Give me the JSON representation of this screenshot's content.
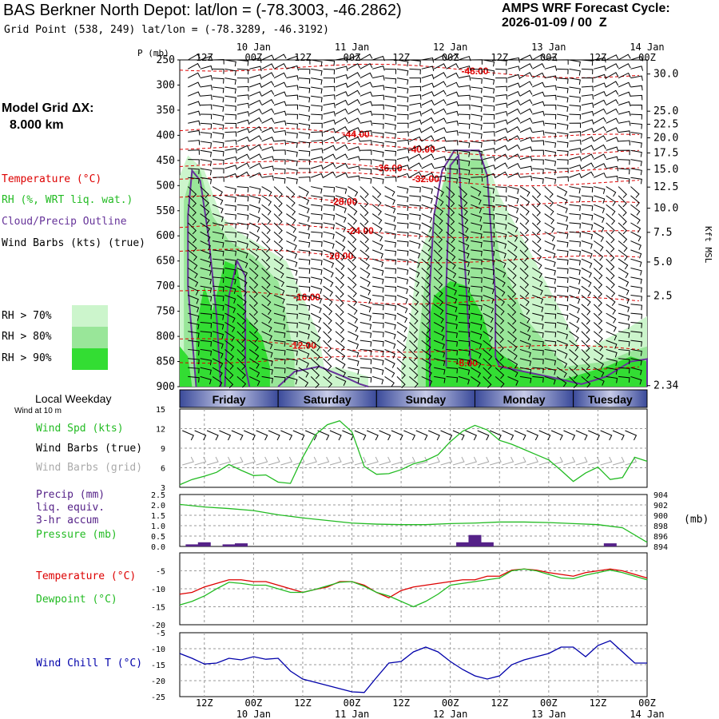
{
  "header": {
    "title": "BAS Berkner North Depot:  lat/lon = (-78.3003, -46.2862)",
    "subtitle": "Grid Point (538, 249) lat/lon = (-78.3289, -46.3192)",
    "cycle_label": "AMPS WRF Forecast Cycle:",
    "cycle_value": "2026-01-09 / 00  Z"
  },
  "model_grid": {
    "label": "Model Grid ΔX:",
    "value": "8.000 km"
  },
  "legend": {
    "temperature": "Temperature (°C)",
    "rh": "RH (%, WRT liq. wat.)",
    "cloud": "Cloud/Precip Outline",
    "wind": "Wind Barbs (kts) (true)",
    "rh70": "RH > 70%",
    "rh80": "RH > 80%",
    "rh90": "RH > 90%"
  },
  "colors": {
    "temperature": "#dd0000",
    "rh": "#22bb22",
    "cloud": "#663399",
    "rh70": "#ccf5cc",
    "rh80": "#99e699",
    "rh90": "#33dd33",
    "dewpoint": "#22bb22",
    "windchill": "#0000aa",
    "wind_grid": "#aaaaaa",
    "precip": "#552288"
  },
  "time_axis": {
    "top_hours": [
      "12Z",
      "00Z",
      "12Z",
      "00Z",
      "12Z",
      "00Z",
      "12Z",
      "00Z",
      "12Z",
      "00Z"
    ],
    "top_dates": [
      "10 Jan",
      "11 Jan",
      "12 Jan",
      "13 Jan",
      "14 Jan"
    ],
    "bottom_hours": [
      "12Z",
      "00Z",
      "12Z",
      "00Z",
      "12Z",
      "00Z",
      "12Z",
      "00Z",
      "12Z",
      "00Z"
    ],
    "bottom_dates": [
      "10 Jan",
      "11 Jan",
      "12 Jan",
      "13 Jan",
      "14 Jan"
    ]
  },
  "weekday": {
    "label": "Local Weekday",
    "sublabel": "Wind at 10 m",
    "days": [
      "Friday",
      "Saturday",
      "Sunday",
      "Monday",
      "Tuesday"
    ]
  },
  "panel_labels": {
    "p_unit": "P (mb)",
    "kft": "Kft MSL",
    "wind_spd": "Wind Spd (kts)",
    "wind_barbs_true": "Wind Barbs (true)",
    "wind_barbs_grid": "Wind Barbs (grid)",
    "precip_1": "Precip (mm)",
    "precip_2": "liq. equiv.",
    "precip_3": "3-hr accum",
    "pressure": "Pressure (mb)",
    "mb": "(mb)",
    "temperature": "Temperature (°C)",
    "dewpoint": "Dewpoint (°C)",
    "windchill": "Wind Chill T (°C)"
  },
  "chart_data": [
    {
      "type": "heatmap",
      "name": "time-height cross section",
      "x_unit": "hours from 2026-01-09 00Z",
      "xlim": [
        6,
        120
      ],
      "pressure_ticks": [
        250,
        300,
        350,
        400,
        450,
        500,
        550,
        600,
        650,
        700,
        750,
        800,
        850,
        900
      ],
      "ylim": [
        250,
        900
      ],
      "height_ticks": [
        "30.0",
        "25.0",
        "22.5",
        "20.0",
        "17.5",
        "15.0",
        "12.5",
        "10.0",
        "7.5",
        "5.0",
        "2.5",
        "2.34"
      ],
      "height_tick_pressures": [
        278,
        352,
        378,
        405,
        435,
        468,
        503,
        545,
        593,
        652,
        720,
        898
      ],
      "temperature_contours": [
        {
          "label": "-48.00",
          "x": 78,
          "p": 272
        },
        {
          "label": "-44.00",
          "x": 49,
          "p": 398
        },
        {
          "label": "-40.00",
          "x": 65,
          "p": 428
        },
        {
          "label": "-36.00",
          "x": 57,
          "p": 465
        },
        {
          "label": "-32.00",
          "x": 66,
          "p": 487
        },
        {
          "label": "-28.00",
          "x": 46,
          "p": 532
        },
        {
          "label": "-24.00",
          "x": 50,
          "p": 590
        },
        {
          "label": "-20.00",
          "x": 45,
          "p": 640
        },
        {
          "label": "-16.00",
          "x": 37,
          "p": 722
        },
        {
          "label": "-12.00",
          "x": 36,
          "p": 818
        },
        {
          "label": "-8.00",
          "x": 76,
          "p": 853
        }
      ]
    },
    {
      "type": "line",
      "name": "wind speed",
      "ylim": [
        3,
        15
      ],
      "yticks": [
        3,
        6,
        9,
        12,
        15
      ],
      "x": [
        6,
        9,
        12,
        15,
        18,
        21,
        24,
        27,
        30,
        33,
        36,
        39,
        42,
        45,
        48,
        51,
        54,
        57,
        60,
        63,
        66,
        69,
        72,
        75,
        78,
        81,
        84,
        87,
        90,
        93,
        96,
        99,
        102,
        105,
        108,
        111,
        114,
        117,
        120
      ],
      "series": [
        {
          "values": [
            3.4,
            4.2,
            4.7,
            5.3,
            6.5,
            5.6,
            4.8,
            4.9,
            3.8,
            3.6,
            7.6,
            11.0,
            12.6,
            13.2,
            11.5,
            6.2,
            5.0,
            5.1,
            5.7,
            6.6,
            7.1,
            8.0,
            10.0,
            11.6,
            12.5,
            11.8,
            10.2,
            9.6,
            8.8,
            8.0,
            7.2,
            5.6,
            3.9,
            5.2,
            6.1,
            4.2,
            4.5,
            7.6,
            7.0
          ]
        }
      ]
    },
    {
      "type": "bar",
      "name": "precipitation and pressure",
      "left_ylim": [
        0,
        2.5
      ],
      "left_yticks": [
        "0.0",
        "0.5",
        "1.0",
        "1.5",
        "2.0",
        "2.5"
      ],
      "right_ylim": [
        894,
        904
      ],
      "right_yticks": [
        "894",
        "896",
        "898",
        "900",
        "902",
        "904"
      ],
      "precip_bars": [
        {
          "x": 9,
          "value": 0.1
        },
        {
          "x": 12,
          "value": 0.2
        },
        {
          "x": 18,
          "value": 0.1
        },
        {
          "x": 21,
          "value": 0.15
        },
        {
          "x": 75,
          "value": 0.2
        },
        {
          "x": 78,
          "value": 0.55
        },
        {
          "x": 81,
          "value": 0.2
        },
        {
          "x": 111,
          "value": 0.15
        }
      ],
      "pressure_x": [
        6,
        12,
        18,
        24,
        30,
        36,
        42,
        48,
        54,
        60,
        66,
        72,
        78,
        84,
        90,
        96,
        102,
        108,
        114,
        120
      ],
      "pressure_values": [
        902.1,
        901.6,
        901.3,
        900.9,
        900.1,
        899.5,
        899.0,
        898.5,
        898.3,
        898.2,
        898.2,
        898.4,
        898.5,
        898.7,
        898.7,
        898.6,
        898.4,
        898.2,
        897.6,
        894.8
      ]
    },
    {
      "type": "line",
      "name": "temperature and dewpoint",
      "ylim": [
        -20,
        0
      ],
      "yticks": [
        -20,
        -15,
        -10,
        -5
      ],
      "x": [
        6,
        9,
        12,
        15,
        18,
        21,
        24,
        27,
        30,
        33,
        36,
        39,
        42,
        45,
        48,
        51,
        54,
        57,
        60,
        63,
        66,
        69,
        72,
        75,
        78,
        81,
        84,
        87,
        90,
        93,
        96,
        99,
        102,
        105,
        108,
        111,
        114,
        117,
        120
      ],
      "series": [
        {
          "values": [
            -11.5,
            -11.0,
            -9.5,
            -8.5,
            -7.5,
            -7.5,
            -8.0,
            -8.0,
            -9.0,
            -10.0,
            -11.0,
            -10.2,
            -9.5,
            -8.0,
            -8.0,
            -9.0,
            -11.0,
            -12.5,
            -10.5,
            -9.5,
            -9.0,
            -8.5,
            -8.0,
            -7.5,
            -7.5,
            -6.5,
            -6.5,
            -4.8,
            -4.5,
            -4.8,
            -5.5,
            -6.0,
            -6.5,
            -5.5,
            -5.0,
            -4.5,
            -5.0,
            -6.0,
            -7.0
          ]
        },
        {
          "values": [
            -14.5,
            -13.5,
            -12.0,
            -10.0,
            -8.2,
            -8.5,
            -9.0,
            -9.0,
            -10.0,
            -11.0,
            -11.0,
            -10.2,
            -9.2,
            -8.2,
            -8.0,
            -9.3,
            -11.0,
            -12.0,
            -13.5,
            -15.0,
            -13.5,
            -11.5,
            -9.0,
            -8.5,
            -8.0,
            -7.5,
            -7.0,
            -5.0,
            -4.5,
            -5.0,
            -6.0,
            -7.0,
            -7.2,
            -6.2,
            -5.5,
            -4.8,
            -5.5,
            -6.5,
            -7.5
          ]
        }
      ]
    },
    {
      "type": "line",
      "name": "wind chill",
      "ylim": [
        -25,
        -5
      ],
      "yticks": [
        -25,
        -20,
        -15,
        -10,
        -5
      ],
      "x": [
        6,
        9,
        12,
        15,
        18,
        21,
        24,
        27,
        30,
        33,
        36,
        39,
        42,
        45,
        48,
        51,
        54,
        57,
        60,
        63,
        66,
        69,
        72,
        75,
        78,
        81,
        84,
        87,
        90,
        93,
        96,
        99,
        102,
        105,
        108,
        111,
        114,
        117,
        120
      ],
      "series": [
        {
          "values": [
            -11.5,
            -13.0,
            -14.8,
            -14.5,
            -13.0,
            -13.5,
            -12.5,
            -13.3,
            -13.0,
            -17.0,
            -19.5,
            -20.5,
            -21.5,
            -22.5,
            -23.5,
            -23.7,
            -19.0,
            -14.5,
            -14.0,
            -11.0,
            -9.5,
            -11.0,
            -14.0,
            -16.5,
            -18.5,
            -19.5,
            -18.5,
            -15.0,
            -13.5,
            -12.5,
            -11.5,
            -9.5,
            -9.5,
            -12.5,
            -9.0,
            -7.5,
            -11.0,
            -14.5,
            -14.5
          ]
        }
      ]
    }
  ]
}
